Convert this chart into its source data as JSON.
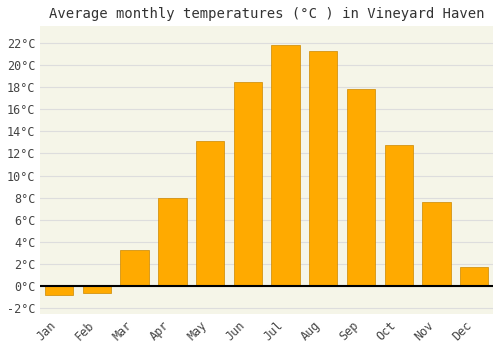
{
  "title": "Average monthly temperatures (°C ) in Vineyard Haven",
  "months": [
    "Jan",
    "Feb",
    "Mar",
    "Apr",
    "May",
    "Jun",
    "Jul",
    "Aug",
    "Sep",
    "Oct",
    "Nov",
    "Dec"
  ],
  "values": [
    -0.8,
    -0.6,
    3.3,
    8.0,
    13.1,
    18.5,
    21.8,
    21.3,
    17.8,
    12.8,
    7.6,
    1.7
  ],
  "bar_color": "#FFAA00",
  "bar_edge_color": "#CC8800",
  "plot_bg_color": "#F5F5E8",
  "fig_bg_color": "#FFFFFF",
  "grid_color": "#DDDDDD",
  "ylim": [
    -2.5,
    23.5
  ],
  "yticks": [
    -2,
    0,
    2,
    4,
    6,
    8,
    10,
    12,
    14,
    16,
    18,
    20,
    22
  ],
  "title_fontsize": 10,
  "tick_fontsize": 8.5,
  "zero_line_color": "#000000",
  "bar_width": 0.75
}
